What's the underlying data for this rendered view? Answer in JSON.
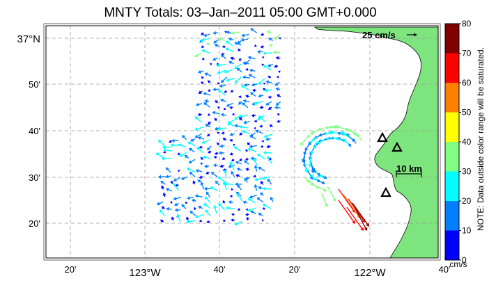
{
  "title": "MNTY Totals: 03–Jan–2011 05:00 GMT+0.000",
  "map": {
    "lon_labels": [
      "20'",
      "123°W",
      "40'",
      "20'",
      "122°W",
      "40'"
    ],
    "lat_labels": [
      "37°N",
      "50'",
      "40'",
      "30'",
      "20'"
    ],
    "velocity_scale_label": "25 cm/s",
    "distance_scale_label": "10 km",
    "land_color": "#7ee57e",
    "sites": [
      "triangle",
      "triangle",
      "triangle"
    ]
  },
  "colorbar": {
    "ticks": [
      "0",
      "10",
      "20",
      "30",
      "40",
      "50",
      "60",
      "70",
      "80"
    ],
    "colors": [
      "#0000ff",
      "#0080ff",
      "#00ffff",
      "#80ff80",
      "#ffff00",
      "#ff8000",
      "#ff0000",
      "#800000"
    ],
    "unit": "cm/s",
    "note": "NOTE: Data outside color range will be saturated."
  }
}
